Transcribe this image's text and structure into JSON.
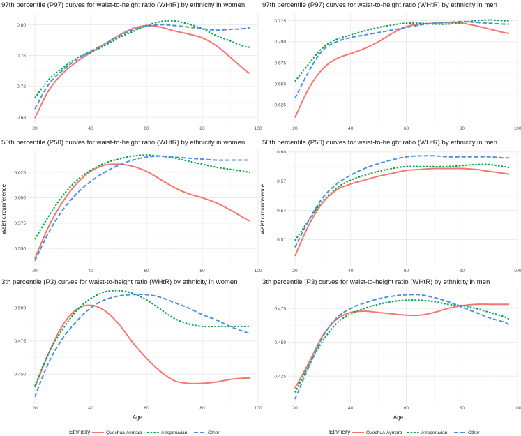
{
  "figure": {
    "ylabel_shared": "Waist circumference",
    "xlabel_shared": "Age"
  },
  "legend": {
    "title": "Ethnicity",
    "items": [
      {
        "name": "Quechua-Aymara",
        "color": "#F8766D",
        "dash": "solid"
      },
      {
        "name": "Afroperuvian",
        "color": "#00A63C",
        "dash": "dotted"
      },
      {
        "name": "Other",
        "color": "#4A90E2",
        "dash": "dashed"
      }
    ]
  },
  "chart_data": [
    {
      "type": "line",
      "title": "97th percentile (P97) curves for waist-to-height ratio (WHtR) by ethnicity in women",
      "xlabel": "",
      "ylabel": "",
      "xlim": [
        17.5,
        100
      ],
      "ylim": [
        0.672,
        0.814
      ],
      "xticks": [
        "20",
        "40",
        "60",
        "80",
        "100"
      ],
      "yticks": [
        "0.68",
        "0.72",
        "0.76",
        "0.80"
      ],
      "ytick_values": [
        0.68,
        0.72,
        0.76,
        0.8
      ],
      "x": [
        20,
        25,
        30,
        35,
        40,
        45,
        50,
        55,
        60,
        65,
        70,
        75,
        80,
        85,
        90,
        95,
        97
      ],
      "series": [
        {
          "name": "Quechua-Aymara",
          "values": [
            0.679,
            0.715,
            0.737,
            0.752,
            0.764,
            0.775,
            0.786,
            0.795,
            0.799,
            0.797,
            0.792,
            0.788,
            0.783,
            0.773,
            0.758,
            0.742,
            0.737
          ]
        },
        {
          "name": "Afroperuvian",
          "values": [
            0.705,
            0.729,
            0.744,
            0.757,
            0.764,
            0.773,
            0.783,
            0.791,
            0.799,
            0.804,
            0.805,
            0.801,
            0.795,
            0.786,
            0.779,
            0.772,
            0.771
          ]
        },
        {
          "name": "Other",
          "values": [
            0.691,
            0.723,
            0.741,
            0.755,
            0.766,
            0.775,
            0.785,
            0.793,
            0.798,
            0.8,
            0.799,
            0.797,
            0.795,
            0.793,
            0.794,
            0.795,
            0.796
          ]
        }
      ]
    },
    {
      "type": "line",
      "title": "97th percentile (P97) curves for waist-to-height ratio (WHtR) by ethnicity in men",
      "xlabel": "",
      "ylabel": "",
      "xlim": [
        17.5,
        100
      ],
      "ylim": [
        0.603,
        0.733
      ],
      "xticks": [
        "20",
        "40",
        "60",
        "80",
        "100"
      ],
      "yticks": [
        "0.625",
        "0.650",
        "0.675",
        "0.700",
        "0.725"
      ],
      "ytick_values": [
        0.625,
        0.65,
        0.675,
        0.7,
        0.725
      ],
      "x": [
        20,
        25,
        30,
        35,
        40,
        45,
        50,
        55,
        60,
        65,
        70,
        75,
        80,
        85,
        90,
        95,
        97
      ],
      "series": [
        {
          "name": "Quechua-Aymara",
          "values": [
            0.61,
            0.645,
            0.668,
            0.68,
            0.686,
            0.692,
            0.7,
            0.71,
            0.718,
            0.721,
            0.722,
            0.723,
            0.722,
            0.719,
            0.715,
            0.711,
            0.71
          ]
        },
        {
          "name": "Afroperuvian",
          "values": [
            0.653,
            0.674,
            0.693,
            0.703,
            0.708,
            0.713,
            0.717,
            0.72,
            0.722,
            0.722,
            0.721,
            0.721,
            0.723,
            0.725,
            0.726,
            0.725,
            0.725
          ]
        },
        {
          "name": "Other",
          "values": [
            0.633,
            0.665,
            0.69,
            0.7,
            0.705,
            0.708,
            0.711,
            0.714,
            0.717,
            0.72,
            0.722,
            0.723,
            0.724,
            0.723,
            0.722,
            0.721,
            0.721
          ]
        }
      ]
    },
    {
      "type": "line",
      "title": "50th percentile (P50) curves for waist-to-height ratio (WHtR) by ethnicity in women",
      "xlabel": "",
      "ylabel": "Waist circumference",
      "xlim": [
        17.5,
        100
      ],
      "ylim": [
        0.533,
        0.647
      ],
      "xticks": [
        "20",
        "40",
        "60",
        "80",
        "100"
      ],
      "yticks": [
        "0.550",
        "0.575",
        "0.600",
        "0.625"
      ],
      "ytick_values": [
        0.55,
        0.575,
        0.6,
        0.625
      ],
      "x": [
        20,
        25,
        30,
        35,
        40,
        45,
        50,
        55,
        60,
        65,
        70,
        75,
        80,
        85,
        90,
        95,
        97
      ],
      "series": [
        {
          "name": "Quechua-Aymara",
          "values": [
            0.54,
            0.572,
            0.596,
            0.614,
            0.626,
            0.632,
            0.633,
            0.631,
            0.626,
            0.618,
            0.61,
            0.604,
            0.6,
            0.595,
            0.588,
            0.58,
            0.577
          ]
        },
        {
          "name": "Afroperuvian",
          "values": [
            0.559,
            0.582,
            0.602,
            0.617,
            0.627,
            0.634,
            0.638,
            0.641,
            0.642,
            0.641,
            0.639,
            0.636,
            0.633,
            0.63,
            0.628,
            0.626,
            0.625
          ]
        },
        {
          "name": "Other",
          "values": [
            0.538,
            0.566,
            0.588,
            0.604,
            0.616,
            0.625,
            0.632,
            0.637,
            0.64,
            0.641,
            0.64,
            0.639,
            0.638,
            0.637,
            0.637,
            0.637,
            0.637
          ]
        }
      ]
    },
    {
      "type": "line",
      "title": "50th percentile (P50) curves for waist-to-height ratio (WHtR) by ethnicity in men",
      "xlabel": "",
      "ylabel": "Waist circumference",
      "xlim": [
        17.5,
        100
      ],
      "ylim": [
        0.483,
        0.602
      ],
      "xticks": [
        "20",
        "40",
        "60",
        "80",
        "100"
      ],
      "yticks": [
        "0.51",
        "0.54",
        "0.57",
        "0.60"
      ],
      "ytick_values": [
        0.51,
        0.54,
        0.57,
        0.6
      ],
      "x": [
        20,
        25,
        30,
        35,
        40,
        45,
        50,
        55,
        60,
        65,
        70,
        75,
        80,
        85,
        90,
        95,
        97
      ],
      "series": [
        {
          "name": "Quechua-Aymara",
          "values": [
            0.493,
            0.525,
            0.548,
            0.561,
            0.567,
            0.571,
            0.575,
            0.578,
            0.581,
            0.582,
            0.583,
            0.583,
            0.583,
            0.582,
            0.58,
            0.578,
            0.577
          ]
        },
        {
          "name": "Afroperuvian",
          "values": [
            0.509,
            0.53,
            0.55,
            0.563,
            0.571,
            0.576,
            0.58,
            0.583,
            0.585,
            0.585,
            0.585,
            0.585,
            0.586,
            0.587,
            0.587,
            0.585,
            0.584
          ]
        },
        {
          "name": "Other",
          "values": [
            0.502,
            0.53,
            0.553,
            0.567,
            0.576,
            0.583,
            0.588,
            0.592,
            0.595,
            0.596,
            0.596,
            0.595,
            0.595,
            0.595,
            0.595,
            0.594,
            0.594
          ]
        }
      ]
    },
    {
      "type": "line",
      "title": "3th percentile (P3) curves for waist-to-height ratio (WHtR) by ethnicity in women",
      "xlabel": "Age",
      "ylabel": "",
      "xlim": [
        17.5,
        100
      ],
      "ylim": [
        0.428,
        0.516
      ],
      "xticks": [
        "20",
        "40",
        "60",
        "80",
        "100"
      ],
      "yticks": [
        "0.450",
        "0.475",
        "0.500"
      ],
      "ytick_values": [
        0.45,
        0.475,
        0.5
      ],
      "x": [
        20,
        25,
        30,
        35,
        40,
        45,
        50,
        55,
        60,
        65,
        70,
        75,
        80,
        85,
        90,
        95,
        97
      ],
      "series": [
        {
          "name": "Quechua-Aymara",
          "values": [
            0.44,
            0.466,
            0.487,
            0.499,
            0.502,
            0.498,
            0.488,
            0.474,
            0.462,
            0.452,
            0.445,
            0.443,
            0.443,
            0.444,
            0.446,
            0.447,
            0.447
          ]
        },
        {
          "name": "Afroperuvian",
          "values": [
            0.441,
            0.466,
            0.484,
            0.498,
            0.507,
            0.512,
            0.513,
            0.511,
            0.506,
            0.499,
            0.492,
            0.488,
            0.486,
            0.486,
            0.486,
            0.486,
            0.486
          ]
        },
        {
          "name": "Other",
          "values": [
            0.433,
            0.459,
            0.477,
            0.49,
            0.5,
            0.506,
            0.509,
            0.51,
            0.51,
            0.508,
            0.504,
            0.5,
            0.495,
            0.491,
            0.486,
            0.482,
            0.481
          ]
        }
      ]
    },
    {
      "type": "line",
      "title": "3th percentile (P3) curves for waist-to-height ratio (WHtR) by ethnicity in men",
      "xlabel": "Age",
      "ylabel": "",
      "xlim": [
        17.5,
        100
      ],
      "ylim": [
        0.405,
        0.491
      ],
      "xticks": [
        "20",
        "40",
        "60",
        "80",
        "100"
      ],
      "yticks": [
        "0.425",
        "0.450",
        "0.475"
      ],
      "ytick_values": [
        0.425,
        0.45,
        0.475
      ],
      "x": [
        20,
        25,
        30,
        35,
        40,
        45,
        50,
        55,
        60,
        65,
        70,
        75,
        80,
        85,
        90,
        95,
        97
      ],
      "series": [
        {
          "name": "Quechua-Aymara",
          "values": [
            0.416,
            0.435,
            0.455,
            0.467,
            0.472,
            0.473,
            0.472,
            0.471,
            0.47,
            0.47,
            0.472,
            0.475,
            0.477,
            0.478,
            0.478,
            0.478,
            0.478
          ]
        },
        {
          "name": "Afroperuvian",
          "values": [
            0.413,
            0.433,
            0.451,
            0.464,
            0.471,
            0.475,
            0.478,
            0.48,
            0.481,
            0.481,
            0.48,
            0.478,
            0.477,
            0.475,
            0.472,
            0.469,
            0.467
          ]
        },
        {
          "name": "Other",
          "values": [
            0.408,
            0.432,
            0.454,
            0.468,
            0.475,
            0.479,
            0.482,
            0.484,
            0.485,
            0.485,
            0.483,
            0.48,
            0.476,
            0.472,
            0.468,
            0.465,
            0.463
          ]
        }
      ]
    }
  ]
}
